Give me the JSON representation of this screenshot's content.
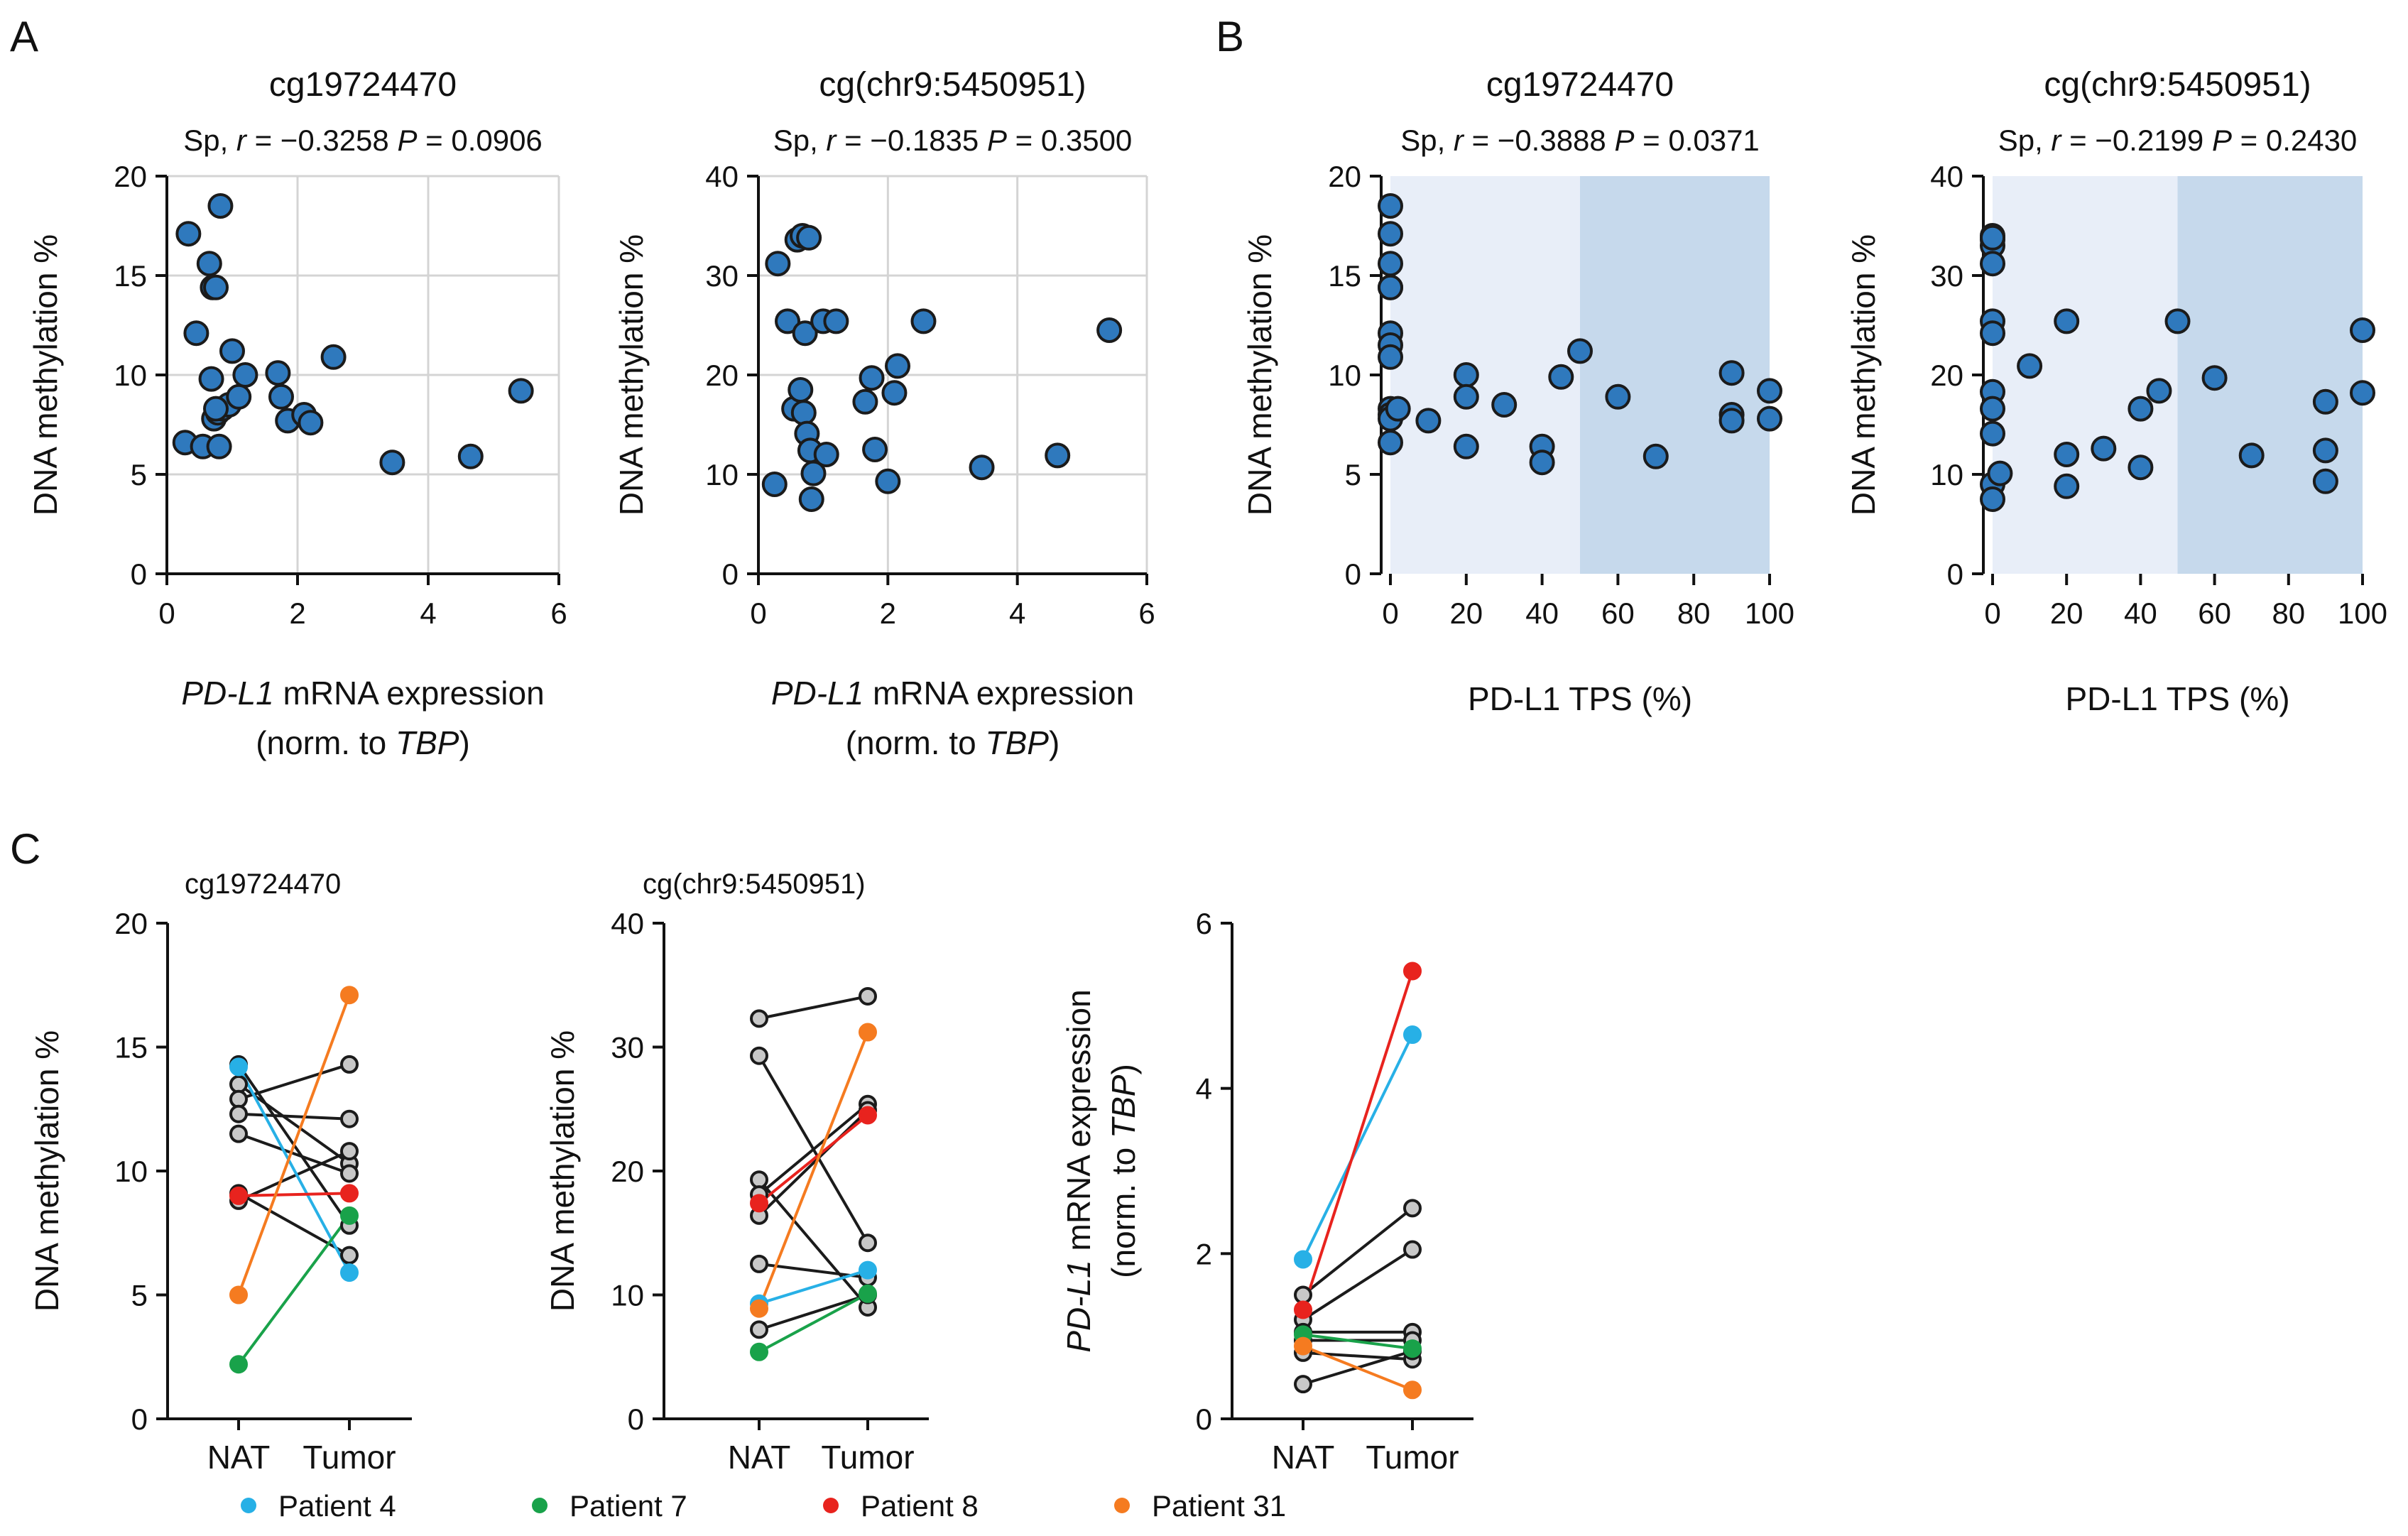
{
  "panel_labels": {
    "a": "A",
    "b": "B",
    "c": "C"
  },
  "colors": {
    "point_fill": "#2f79bd",
    "point_stroke": "#1b1b1b",
    "gray_point": "#c8c8c8",
    "band_light": "#e8eef8",
    "band_dark": "#c6d9ec"
  },
  "legend": [
    {
      "name": "Patient 4",
      "color": "#27b0e6"
    },
    {
      "name": "Patient 7",
      "color": "#19a24a"
    },
    {
      "name": "Patient 8",
      "color": "#e8231e"
    },
    {
      "name": "Patient 31",
      "color": "#f57b20"
    }
  ],
  "chart_data": [
    {
      "id": "a1",
      "type": "scatter",
      "title": "cg19724470",
      "stat": {
        "prefix": "Sp, ",
        "r_label": "r",
        "r_text": " = −0.3258 ",
        "p_label": "P",
        "p_text": " = 0.0906"
      },
      "xlabel_italic": "PD-L1",
      "xlabel_rest": " mRNA expression",
      "xlabel2_pre": "(norm. to ",
      "xlabel2_italic": "TBP",
      "xlabel2_post": ")",
      "ylabel": "DNA methylation %",
      "xlim": [
        0,
        6
      ],
      "ylim": [
        0,
        20
      ],
      "xticks": [
        "0",
        "2",
        "4",
        "6"
      ],
      "yticks": [
        "0",
        "5",
        "10",
        "15",
        "20"
      ],
      "x": [
        0.28,
        0.33,
        0.45,
        0.55,
        0.65,
        0.68,
        0.7,
        0.72,
        0.75,
        0.78,
        0.8,
        0.82,
        0.85,
        0.95,
        1.0,
        1.1,
        1.2,
        1.7,
        1.75,
        1.85,
        2.1,
        2.2,
        2.55,
        3.45,
        4.65,
        5.42,
        0.75
      ],
      "y": [
        6.6,
        17.1,
        12.1,
        6.4,
        15.6,
        9.8,
        14.4,
        7.8,
        14.4,
        8.1,
        6.4,
        18.5,
        8.3,
        8.5,
        11.2,
        8.9,
        10.0,
        10.1,
        8.9,
        7.7,
        8.0,
        7.6,
        10.9,
        5.6,
        5.9,
        9.2,
        8.3
      ]
    },
    {
      "id": "a2",
      "type": "scatter",
      "title": "cg(chr9:5450951)",
      "stat": {
        "prefix": "Sp, ",
        "r_label": "r",
        "r_text": " = −0.1835 ",
        "p_label": "P",
        "p_text": " = 0.3500"
      },
      "xlabel_italic": "PD-L1",
      "xlabel_rest": " mRNA expression",
      "xlabel2_pre": "(norm. to ",
      "xlabel2_italic": "TBP",
      "xlabel2_post": ")",
      "ylabel": "DNA methylation %",
      "xlim": [
        0,
        6
      ],
      "ylim": [
        0,
        40
      ],
      "xticks": [
        "0",
        "2",
        "4",
        "6"
      ],
      "yticks": [
        "0",
        "10",
        "20",
        "30",
        "40"
      ],
      "x": [
        0.25,
        0.3,
        0.45,
        0.55,
        0.6,
        0.65,
        0.68,
        0.7,
        0.72,
        0.75,
        0.78,
        0.8,
        0.82,
        0.85,
        1.0,
        1.05,
        1.2,
        1.65,
        1.75,
        1.8,
        2.0,
        2.1,
        2.15,
        2.55,
        3.45,
        4.62,
        5.42
      ],
      "y": [
        9.0,
        31.2,
        25.4,
        16.6,
        33.6,
        18.5,
        34.0,
        16.2,
        24.2,
        14.1,
        33.8,
        12.4,
        7.5,
        10.1,
        25.4,
        12.0,
        25.4,
        17.3,
        19.7,
        12.5,
        9.3,
        18.2,
        20.9,
        25.4,
        10.7,
        11.9,
        24.5
      ]
    },
    {
      "id": "b1",
      "type": "scatter",
      "title": "cg19724470",
      "stat": {
        "prefix": "Sp, ",
        "r_label": "r",
        "r_text": " = −0.3888 ",
        "p_label": "P",
        "p_text": " = 0.0371"
      },
      "xlabel": "PD-L1 TPS (%)",
      "ylabel": "DNA methylation %",
      "xlim": [
        0,
        100
      ],
      "ylim": [
        0,
        20
      ],
      "bands": [
        [
          0,
          50
        ],
        [
          50,
          100
        ]
      ],
      "xticks": [
        "0",
        "20",
        "40",
        "60",
        "80",
        "100"
      ],
      "yticks": [
        "0",
        "5",
        "10",
        "15",
        "20"
      ],
      "x": [
        0,
        0,
        0,
        0,
        0,
        0,
        0,
        0,
        0,
        0,
        0,
        0,
        2,
        10,
        20,
        20,
        20,
        30,
        40,
        40,
        45,
        50,
        60,
        70,
        90,
        90,
        90,
        100,
        100
      ],
      "y": [
        18.5,
        17.1,
        15.6,
        14.4,
        14.4,
        12.1,
        11.5,
        10.9,
        8.3,
        8.0,
        7.8,
        6.6,
        8.3,
        7.7,
        10.0,
        8.9,
        6.4,
        8.5,
        6.4,
        5.6,
        9.9,
        11.2,
        8.9,
        5.9,
        10.1,
        8.0,
        7.7,
        9.2,
        7.8
      ]
    },
    {
      "id": "b2",
      "type": "scatter",
      "title": "cg(chr9:5450951)",
      "stat": {
        "prefix": "Sp, ",
        "r_label": "r",
        "r_text": " = −0.2199 ",
        "p_label": "P",
        "p_text": " = 0.2430"
      },
      "xlabel": "PD-L1 TPS (%)",
      "ylabel": "DNA methylation %",
      "xlim": [
        0,
        100
      ],
      "ylim": [
        0,
        40
      ],
      "bands": [
        [
          0,
          50
        ],
        [
          50,
          100
        ]
      ],
      "xticks": [
        "0",
        "20",
        "40",
        "60",
        "80",
        "100"
      ],
      "yticks": [
        "0",
        "10",
        "20",
        "30",
        "40"
      ],
      "x": [
        0,
        0,
        0,
        0,
        0,
        0,
        0,
        0,
        0,
        0,
        0,
        0,
        2,
        10,
        20,
        20,
        20,
        30,
        40,
        40,
        45,
        50,
        60,
        70,
        90,
        90,
        90,
        100,
        100
      ],
      "y": [
        33.6,
        33.0,
        31.2,
        25.4,
        24.2,
        18.3,
        16.6,
        14.1,
        9.0,
        7.5,
        34.0,
        33.8,
        10.1,
        20.9,
        25.4,
        12.0,
        8.8,
        12.6,
        16.6,
        10.7,
        18.4,
        25.4,
        19.7,
        11.9,
        17.3,
        12.4,
        9.3,
        24.5,
        18.2
      ]
    },
    {
      "id": "c1",
      "type": "paired",
      "title": "cg19724470",
      "ylabel": "DNA methylation %",
      "ylim": [
        0,
        20
      ],
      "categories": [
        "NAT",
        "Tumor"
      ],
      "yticks": [
        "0",
        "5",
        "10",
        "15",
        "20"
      ],
      "series": [
        {
          "name": "",
          "values": [
            14.3,
            7.8
          ]
        },
        {
          "name": "",
          "values": [
            13.5,
            10.3
          ]
        },
        {
          "name": "",
          "values": [
            12.9,
            14.3
          ]
        },
        {
          "name": "",
          "values": [
            12.3,
            12.1
          ]
        },
        {
          "name": "",
          "values": [
            11.5,
            9.9
          ]
        },
        {
          "name": "",
          "values": [
            8.8,
            10.8
          ]
        },
        {
          "name": "",
          "values": [
            9.1,
            6.6
          ]
        },
        {
          "name": "Patient 4",
          "values": [
            14.2,
            5.9
          ]
        },
        {
          "name": "Patient 7",
          "values": [
            2.2,
            8.2
          ]
        },
        {
          "name": "Patient 8",
          "values": [
            9.0,
            9.1
          ]
        },
        {
          "name": "Patient 31",
          "values": [
            5.0,
            17.1
          ]
        }
      ]
    },
    {
      "id": "c2",
      "type": "paired",
      "title": "cg(chr9:5450951)",
      "ylabel": "DNA methylation %",
      "ylim": [
        0,
        40
      ],
      "categories": [
        "NAT",
        "Tumor"
      ],
      "yticks": [
        "0",
        "10",
        "20",
        "30",
        "40"
      ],
      "series": [
        {
          "name": "",
          "values": [
            32.3,
            34.1
          ]
        },
        {
          "name": "",
          "values": [
            29.3,
            14.2
          ]
        },
        {
          "name": "",
          "values": [
            19.3,
            9.0
          ]
        },
        {
          "name": "",
          "values": [
            18.1,
            25.4
          ]
        },
        {
          "name": "",
          "values": [
            16.4,
            24.9
          ]
        },
        {
          "name": "",
          "values": [
            12.5,
            11.4
          ]
        },
        {
          "name": "",
          "values": [
            7.2,
            10.0
          ]
        },
        {
          "name": "Patient 4",
          "values": [
            9.3,
            12.0
          ]
        },
        {
          "name": "Patient 7",
          "values": [
            5.4,
            10.1
          ]
        },
        {
          "name": "Patient 8",
          "values": [
            17.4,
            24.5
          ]
        },
        {
          "name": "Patient 31",
          "values": [
            8.9,
            31.2
          ]
        }
      ]
    },
    {
      "id": "c3",
      "type": "paired",
      "title": "",
      "ylabel_italic": "PD-L1",
      "ylabel_rest": " mRNA expression",
      "ylabel2_pre": "(norm. to ",
      "ylabel2_italic": "TBP",
      "ylabel2_post": ")",
      "ylim": [
        0,
        6
      ],
      "categories": [
        "NAT",
        "Tumor"
      ],
      "yticks": [
        "0",
        "2",
        "4",
        "6"
      ],
      "series": [
        {
          "name": "",
          "values": [
            1.5,
            2.55
          ]
        },
        {
          "name": "",
          "values": [
            1.2,
            2.05
          ]
        },
        {
          "name": "",
          "values": [
            1.05,
            1.05
          ]
        },
        {
          "name": "",
          "values": [
            0.95,
            0.95
          ]
        },
        {
          "name": "",
          "values": [
            0.8,
            0.72
          ]
        },
        {
          "name": "",
          "values": [
            0.42,
            0.82
          ]
        },
        {
          "name": "Patient 4",
          "values": [
            1.93,
            4.65
          ]
        },
        {
          "name": "Patient 7",
          "values": [
            1.02,
            0.85
          ]
        },
        {
          "name": "Patient 8",
          "values": [
            1.32,
            5.42
          ]
        },
        {
          "name": "Patient 31",
          "values": [
            0.88,
            0.35
          ]
        }
      ]
    }
  ]
}
